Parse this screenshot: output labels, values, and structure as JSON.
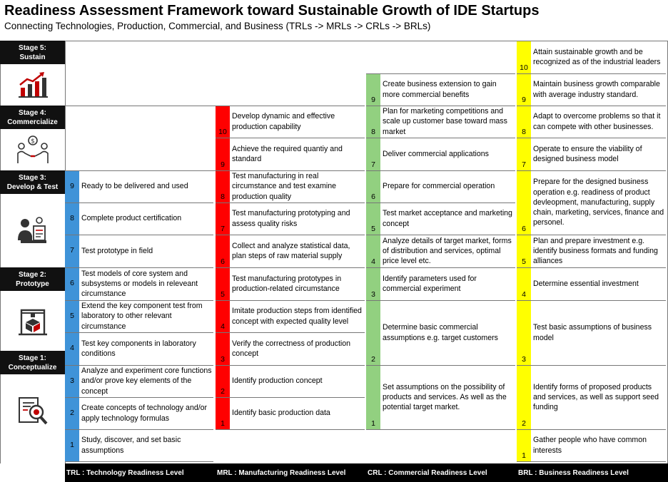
{
  "header": {
    "title": "Readiness Assessment Framework toward Sustainable Growth of IDE Startups",
    "subtitle": "Connecting Technologies, Production, Commercial, and Business  (TRLs -> MRLs -> CRLs -> BRLs)"
  },
  "colors": {
    "trl": "#3f93d8",
    "mrl": "#ff0000",
    "crl": "#92d080",
    "brl": "#ffff00",
    "stage_bg": "#111111"
  },
  "stages": [
    {
      "line1": "Stage 5:",
      "line2": "Sustain",
      "icon": "growth-chart-icon"
    },
    {
      "line1": "Stage 4:",
      "line2": "Commercialize",
      "icon": "handshake-money-icon"
    },
    {
      "line1": "Stage 3:",
      "line2": "Develop & Test",
      "icon": "testing-person-icon"
    },
    {
      "line1": "Stage 2:",
      "line2": "Prototype",
      "icon": "prototype-box-icon"
    },
    {
      "line1": "Stage 1:",
      "line2": "Conceptualize",
      "icon": "idea-search-icon"
    }
  ],
  "trl": [
    {
      "level": "9",
      "text": "Ready to be delivered and used"
    },
    {
      "level": "8",
      "text": "Complete product certification"
    },
    {
      "level": "7",
      "text": "Test prototype in field"
    },
    {
      "level": "6",
      "text": "Test models of core system and subsystems or models in releveant circumstance"
    },
    {
      "level": "5",
      "text": "Extend the key component test from laboratory to other relevant circumstance"
    },
    {
      "level": "4",
      "text": "Test key components in laboratory conditions"
    },
    {
      "level": "3",
      "text": "Analyze and experiment core functions and/or prove key elements of the concept"
    },
    {
      "level": "2",
      "text": "Create concepts of technology and/or apply technology formulas"
    },
    {
      "level": "1",
      "text": "Study, discover, and set basic assumptions"
    }
  ],
  "mrl": [
    {
      "level": "10",
      "text": "Develop dynamic and effective production capability"
    },
    {
      "level": "9",
      "text": "Achieve the required quantiy and standard"
    },
    {
      "level": "8",
      "text": "Test manufacturing in real circumstance and test examine production quality"
    },
    {
      "level": "7",
      "text": "Test manufacturing prototyping and assess quality risks"
    },
    {
      "level": "6",
      "text": "Collect and analyze statistical data, plan steps of raw material supply"
    },
    {
      "level": "5",
      "text": "Test manufacturing prototypes in production-related circumstance"
    },
    {
      "level": "4",
      "text": "Imitate production steps from identified concept with expected quality level"
    },
    {
      "level": "3",
      "text": "Verify the correctness of production concept"
    },
    {
      "level": "2",
      "text": "Identify production concept"
    },
    {
      "level": "1",
      "text": "Identify basic production data"
    }
  ],
  "crl": [
    {
      "level": "9",
      "text": "Create business extension to gain more commercial benefits"
    },
    {
      "level": "8",
      "text": "Plan for marketing competitions and scale up customer base toward mass market"
    },
    {
      "level": "7",
      "text": "Deliver commercial applications"
    },
    {
      "level": "6",
      "text": "Prepare for commercial operation"
    },
    {
      "level": "5",
      "text": "Test market acceptance and marketing concept"
    },
    {
      "level": "4",
      "text": "Analyze details of target market, forms of distribution and services, optimal price level etc."
    },
    {
      "level": "3",
      "text": "Identify parameters used for commercial experiment"
    },
    {
      "level": "2",
      "text": "Determine basic commercial assumptions e.g. target customers"
    },
    {
      "level": "1",
      "text": "Set assumptions on the possibility of products and services. As well as the potential target market."
    }
  ],
  "brl": [
    {
      "level": "10",
      "text": "Attain sustainable growth and be recognized as of the industrial leaders"
    },
    {
      "level": "9",
      "text": "Maintain business growth comparable with average industry standard."
    },
    {
      "level": "8",
      "text": "Adapt to overcome problems so that it can compete with other businesses."
    },
    {
      "level": "7",
      "text": "Operate to ensure the viability of designed business model"
    },
    {
      "level": "6",
      "text": "Prepare for the designed business operation e.g. readiness of product devleopment, manufacturing, supply chain, marketing, services, finance and personel."
    },
    {
      "level": "5",
      "text": "Plan and prepare investment e.g. identify business formats and funding alliances"
    },
    {
      "level": "4",
      "text": "Determine essential investment"
    },
    {
      "level": "3",
      "text": "Test basic assumptions of business model"
    },
    {
      "level": "2",
      "text": "Identify forms of proposed products and services, as well as support seed funding"
    },
    {
      "level": "1",
      "text": "Gather people who have common interests"
    }
  ],
  "footer": {
    "trl": "TRL : Technology Readiness Level",
    "mrl": "MRL : Manufacturing Readiness Level",
    "crl": "CRL : Commercial Readiness Level",
    "brl": "BRL : Business Readiness Level"
  }
}
